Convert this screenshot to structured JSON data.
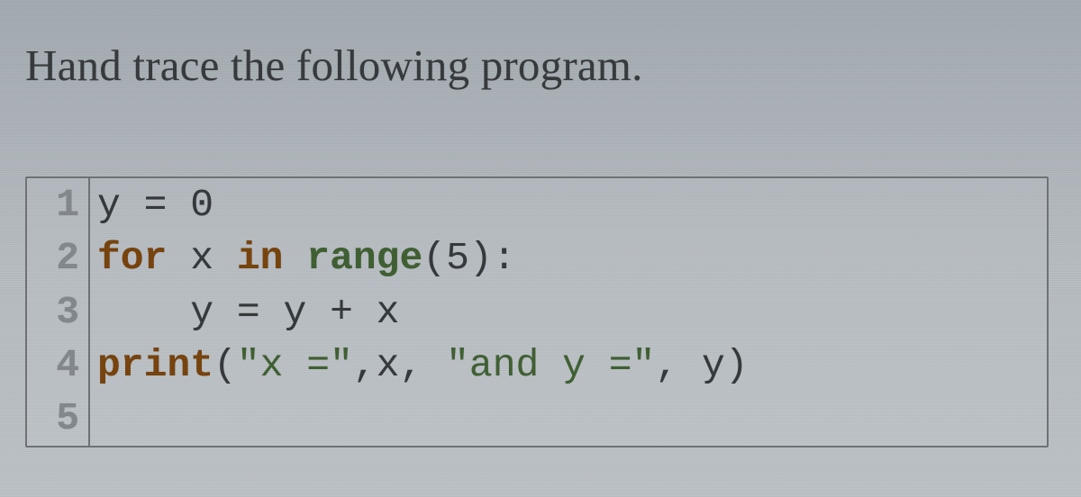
{
  "question": "Hand trace the following program.",
  "code": {
    "font_family": "Courier New, monospace",
    "font_size_pt": 32,
    "gutter_color": "#878d92",
    "border_color": "#707478",
    "background_color": "#b0b6bb",
    "colors": {
      "plain": "#2d3236",
      "keyword": "#7a3e00",
      "builtin": "#3a5f2a",
      "string": "#3a5f2a",
      "number": "#5a2f00"
    },
    "lines": [
      {
        "n": "1",
        "tokens": [
          {
            "t": "y ",
            "c": "plain"
          },
          {
            "t": "=",
            "c": "plain"
          },
          {
            "t": " 0",
            "c": "plain"
          }
        ]
      },
      {
        "n": "2",
        "tokens": [
          {
            "t": "for",
            "c": "keyword"
          },
          {
            "t": " x ",
            "c": "plain"
          },
          {
            "t": "in",
            "c": "keyword"
          },
          {
            "t": " ",
            "c": "plain"
          },
          {
            "t": "range",
            "c": "builtin"
          },
          {
            "t": "(5):",
            "c": "plain"
          }
        ]
      },
      {
        "n": "3",
        "tokens": [
          {
            "t": "    y ",
            "c": "plain"
          },
          {
            "t": "=",
            "c": "plain"
          },
          {
            "t": " y ",
            "c": "plain"
          },
          {
            "t": "+",
            "c": "plain"
          },
          {
            "t": " x",
            "c": "plain"
          }
        ]
      },
      {
        "n": "4",
        "tokens": [
          {
            "t": "print",
            "c": "keyword"
          },
          {
            "t": "(",
            "c": "plain"
          },
          {
            "t": "\"x =\"",
            "c": "string"
          },
          {
            "t": ",x, ",
            "c": "plain"
          },
          {
            "t": "\"and y =\"",
            "c": "string"
          },
          {
            "t": ", y)",
            "c": "plain"
          }
        ]
      },
      {
        "n": "5",
        "tokens": [
          {
            "t": "",
            "c": "plain"
          }
        ]
      }
    ]
  }
}
